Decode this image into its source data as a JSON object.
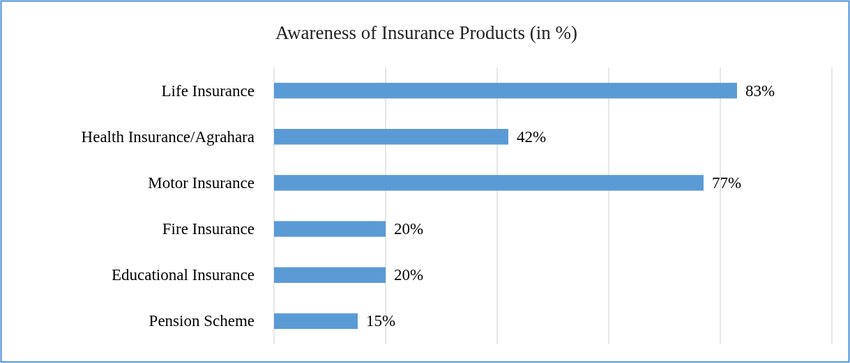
{
  "chart_data": {
    "type": "bar",
    "orientation": "horizontal",
    "title": "Awareness  of Insurance Products (in  %)",
    "categories": [
      "Life Insurance",
      "Health Insurance/Agrahara",
      "Motor Insurance",
      "Fire Insurance",
      "Educational Insurance",
      "Pension Scheme"
    ],
    "values": [
      83,
      42,
      77,
      20,
      20,
      15
    ],
    "value_labels": [
      "83%",
      "42%",
      "77%",
      "20%",
      "20%",
      "15%"
    ],
    "color": "#5b9bd5",
    "xlim": [
      0,
      100
    ],
    "xticks": [
      {
        "value": 0,
        "label": null
      },
      {
        "value": 20,
        "label": null
      },
      {
        "value": 40,
        "label": null
      },
      {
        "value": 60,
        "label": null
      },
      {
        "value": 80,
        "label": null
      },
      {
        "value": 100,
        "label": null
      }
    ],
    "tick_labels": "y",
    "grid": "x"
  }
}
